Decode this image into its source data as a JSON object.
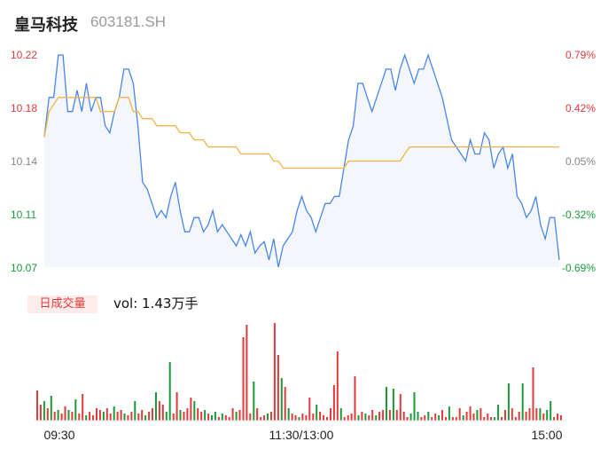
{
  "header": {
    "name": "皇马科技",
    "code": "603181.SH"
  },
  "volume_panel": {
    "badge": "日成交量",
    "label": "vol: 1.43万手"
  },
  "chart_data": [
    {
      "type": "line",
      "title": "",
      "y_ticks": [
        "10.22",
        "10.18",
        "10.14",
        "10.11",
        "10.07"
      ],
      "y_tick_colors": [
        "#e03a3a",
        "#e03a3a",
        "#888888",
        "#1a9a3c",
        "#1a9a3c"
      ],
      "pct_ticks": [
        "0.79%",
        "0.42%",
        "0.05%",
        "-0.32%",
        "-0.69%"
      ],
      "pct_tick_colors": [
        "#e03a3a",
        "#e03a3a",
        "#888888",
        "#1a9a3c",
        "#1a9a3c"
      ],
      "ylim": [
        10.07,
        10.22
      ],
      "x_ticks": [
        "09:30",
        "11:30/13:00",
        "15:00"
      ],
      "series": [
        {
          "color": "#4a86e8",
          "values": [
            10.162,
            10.19,
            10.19,
            10.22,
            10.22,
            10.18,
            10.18,
            10.195,
            10.18,
            10.2,
            10.18,
            10.19,
            10.19,
            10.17,
            10.165,
            10.18,
            10.19,
            10.21,
            10.21,
            10.2,
            10.17,
            10.13,
            10.125,
            10.115,
            10.105,
            10.11,
            10.105,
            10.12,
            10.13,
            10.11,
            10.095,
            10.095,
            10.105,
            10.105,
            10.095,
            10.1,
            10.11,
            10.095,
            10.1,
            10.095,
            10.09,
            10.085,
            10.093,
            10.085,
            10.095,
            10.08,
            10.085,
            10.088,
            10.075,
            10.09,
            10.07,
            10.085,
            10.09,
            10.095,
            10.11,
            10.12,
            10.11,
            10.105,
            10.095,
            10.105,
            10.115,
            10.115,
            10.12,
            10.12,
            10.14,
            10.16,
            10.17,
            10.2,
            10.2,
            10.19,
            10.18,
            10.19,
            10.2,
            10.21,
            10.21,
            10.195,
            10.21,
            10.22,
            10.21,
            10.2,
            10.21,
            10.21,
            10.22,
            10.21,
            10.2,
            10.19,
            10.175,
            10.16,
            10.155,
            10.15,
            10.145,
            10.16,
            10.15,
            10.15,
            10.165,
            10.16,
            10.14,
            10.15,
            10.155,
            10.14,
            10.15,
            10.12,
            10.115,
            10.105,
            10.11,
            10.12,
            10.1,
            10.09,
            10.105,
            10.105,
            10.075
          ]
        },
        {
          "color": "#f5b342",
          "values": [
            10.162,
            10.18,
            10.185,
            10.19,
            10.19,
            10.19,
            10.19,
            10.19,
            10.19,
            10.19,
            10.19,
            10.19,
            10.18,
            10.18,
            10.18,
            10.18,
            10.19,
            10.19,
            10.19,
            10.18,
            10.18,
            10.175,
            10.175,
            10.175,
            10.17,
            10.17,
            10.17,
            10.17,
            10.17,
            10.165,
            10.165,
            10.165,
            10.16,
            10.16,
            10.16,
            10.155,
            10.155,
            10.155,
            10.155,
            10.155,
            10.155,
            10.155,
            10.15,
            10.15,
            10.15,
            10.15,
            10.15,
            10.15,
            10.15,
            10.145,
            10.145,
            10.14,
            10.14,
            10.14,
            10.14,
            10.14,
            10.14,
            10.14,
            10.14,
            10.14,
            10.14,
            10.14,
            10.14,
            10.14,
            10.14,
            10.145,
            10.145,
            10.145,
            10.145,
            10.145,
            10.145,
            10.145,
            10.145,
            10.145,
            10.145,
            10.145,
            10.145,
            10.15,
            10.155,
            10.155,
            10.155,
            10.155,
            10.155,
            10.155,
            10.155,
            10.155,
            10.155,
            10.155,
            10.155,
            10.155,
            10.155,
            10.155,
            10.155,
            10.155,
            10.155,
            10.155,
            10.155,
            10.155,
            10.155,
            10.155,
            10.155,
            10.155,
            10.155,
            10.155,
            10.155,
            10.155,
            10.155,
            10.155,
            10.155,
            10.155,
            10.155
          ]
        }
      ]
    },
    {
      "type": "bar",
      "values": [
        [
          34,
          "r"
        ],
        [
          18,
          "r"
        ],
        [
          22,
          "g"
        ],
        [
          14,
          "r"
        ],
        [
          28,
          "g"
        ],
        [
          10,
          "r"
        ],
        [
          12,
          "g"
        ],
        [
          8,
          "r"
        ],
        [
          16,
          "r"
        ],
        [
          12,
          "g"
        ],
        [
          10,
          "r"
        ],
        [
          24,
          "g"
        ],
        [
          8,
          "r"
        ],
        [
          30,
          "r"
        ],
        [
          6,
          "g"
        ],
        [
          10,
          "r"
        ],
        [
          6,
          "r"
        ],
        [
          14,
          "r"
        ],
        [
          12,
          "r"
        ],
        [
          10,
          "g"
        ],
        [
          14,
          "r"
        ],
        [
          8,
          "r"
        ],
        [
          16,
          "g"
        ],
        [
          10,
          "r"
        ],
        [
          12,
          "r"
        ],
        [
          8,
          "g"
        ],
        [
          6,
          "r"
        ],
        [
          10,
          "r"
        ],
        [
          22,
          "g"
        ],
        [
          8,
          "r"
        ],
        [
          12,
          "r"
        ],
        [
          6,
          "g"
        ],
        [
          10,
          "r"
        ],
        [
          14,
          "r"
        ],
        [
          32,
          "g"
        ],
        [
          22,
          "r"
        ],
        [
          18,
          "r"
        ],
        [
          10,
          "g"
        ],
        [
          66,
          "g"
        ],
        [
          8,
          "r"
        ],
        [
          32,
          "r"
        ],
        [
          12,
          "g"
        ],
        [
          10,
          "r"
        ],
        [
          14,
          "r"
        ],
        [
          26,
          "r"
        ],
        [
          22,
          "g"
        ],
        [
          14,
          "r"
        ],
        [
          10,
          "r"
        ],
        [
          12,
          "g"
        ],
        [
          8,
          "r"
        ],
        [
          6,
          "g"
        ],
        [
          10,
          "g"
        ],
        [
          4,
          "r"
        ],
        [
          8,
          "g"
        ],
        [
          6,
          "r"
        ],
        [
          4,
          "r"
        ],
        [
          14,
          "r"
        ],
        [
          10,
          "g"
        ],
        [
          12,
          "r"
        ],
        [
          94,
          "r"
        ],
        [
          108,
          "r"
        ],
        [
          8,
          "r"
        ],
        [
          44,
          "g"
        ],
        [
          14,
          "r"
        ],
        [
          4,
          "r"
        ],
        [
          6,
          "r"
        ],
        [
          8,
          "g"
        ],
        [
          10,
          "r"
        ],
        [
          110,
          "r"
        ],
        [
          74,
          "r"
        ],
        [
          48,
          "g"
        ],
        [
          38,
          "r"
        ],
        [
          14,
          "g"
        ],
        [
          8,
          "r"
        ],
        [
          6,
          "r"
        ],
        [
          4,
          "g"
        ],
        [
          8,
          "r"
        ],
        [
          6,
          "r"
        ],
        [
          26,
          "r"
        ],
        [
          8,
          "r"
        ],
        [
          18,
          "g"
        ],
        [
          10,
          "r"
        ],
        [
          6,
          "r"
        ],
        [
          4,
          "r"
        ],
        [
          14,
          "r"
        ],
        [
          40,
          "r"
        ],
        [
          78,
          "r"
        ],
        [
          14,
          "g"
        ],
        [
          4,
          "r"
        ],
        [
          6,
          "r"
        ],
        [
          8,
          "r"
        ],
        [
          50,
          "r"
        ],
        [
          6,
          "g"
        ],
        [
          10,
          "r"
        ],
        [
          8,
          "g"
        ],
        [
          6,
          "r"
        ],
        [
          12,
          "r"
        ],
        [
          6,
          "g"
        ],
        [
          10,
          "r"
        ],
        [
          12,
          "r"
        ],
        [
          38,
          "g"
        ],
        [
          12,
          "r"
        ],
        [
          36,
          "g"
        ],
        [
          12,
          "r"
        ],
        [
          30,
          "r"
        ],
        [
          10,
          "r"
        ],
        [
          4,
          "r"
        ],
        [
          8,
          "g"
        ],
        [
          32,
          "g"
        ],
        [
          10,
          "g"
        ],
        [
          4,
          "r"
        ],
        [
          6,
          "r"
        ],
        [
          10,
          "g"
        ],
        [
          4,
          "r"
        ],
        [
          8,
          "r"
        ],
        [
          6,
          "g"
        ],
        [
          12,
          "r"
        ],
        [
          4,
          "r"
        ],
        [
          16,
          "g"
        ],
        [
          4,
          "r"
        ],
        [
          4,
          "r"
        ],
        [
          14,
          "r"
        ],
        [
          6,
          "g"
        ],
        [
          10,
          "r"
        ],
        [
          16,
          "r"
        ],
        [
          8,
          "r"
        ],
        [
          12,
          "g"
        ],
        [
          14,
          "r"
        ],
        [
          4,
          "r"
        ],
        [
          8,
          "r"
        ],
        [
          4,
          "r"
        ],
        [
          4,
          "g"
        ],
        [
          18,
          "g"
        ],
        [
          4,
          "r"
        ],
        [
          12,
          "r"
        ],
        [
          42,
          "g"
        ],
        [
          14,
          "r"
        ],
        [
          4,
          "r"
        ],
        [
          10,
          "r"
        ],
        [
          42,
          "g"
        ],
        [
          10,
          "r"
        ],
        [
          14,
          "r"
        ],
        [
          60,
          "r"
        ],
        [
          14,
          "r"
        ],
        [
          14,
          "g"
        ],
        [
          8,
          "r"
        ],
        [
          12,
          "g"
        ],
        [
          22,
          "g"
        ],
        [
          4,
          "r"
        ],
        [
          8,
          "r"
        ],
        [
          6,
          "r"
        ]
      ]
    }
  ]
}
